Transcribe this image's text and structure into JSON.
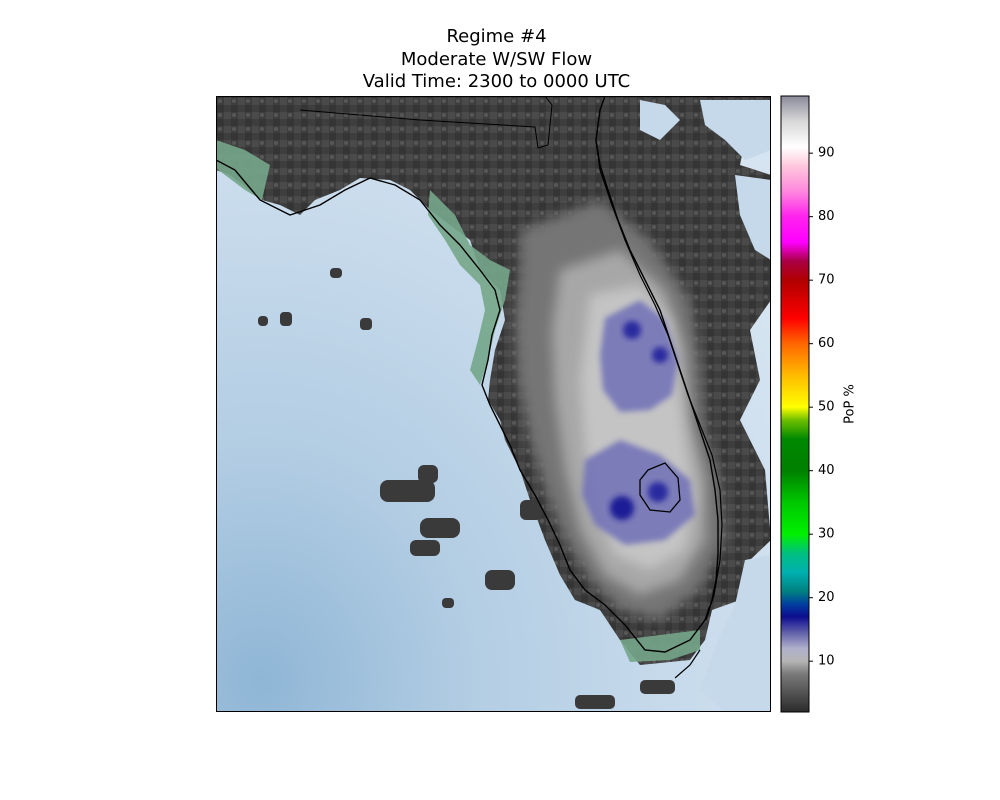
{
  "chart_data": {
    "type": "heatmap",
    "title_lines": [
      "Regime #4",
      "Moderate W/SW Flow",
      "Valid Time: 2300 to 0000 UTC"
    ],
    "colorbar": {
      "label": "PoP %",
      "range": [
        2,
        99
      ],
      "ticks": [
        10,
        20,
        30,
        40,
        50,
        60,
        70,
        80,
        90
      ],
      "color_stops": [
        {
          "value": 2,
          "color": "#2b2b2b"
        },
        {
          "value": 8,
          "color": "#7a7a7a"
        },
        {
          "value": 10,
          "color": "#b5b5b5"
        },
        {
          "value": 12,
          "color": "#b0b0cc"
        },
        {
          "value": 14,
          "color": "#7070b0"
        },
        {
          "value": 17,
          "color": "#0d0d90"
        },
        {
          "value": 19,
          "color": "#0040a0"
        },
        {
          "value": 21,
          "color": "#008080"
        },
        {
          "value": 24,
          "color": "#00b0b0"
        },
        {
          "value": 27,
          "color": "#00c080"
        },
        {
          "value": 30,
          "color": "#00f000"
        },
        {
          "value": 35,
          "color": "#00c800"
        },
        {
          "value": 40,
          "color": "#008000"
        },
        {
          "value": 45,
          "color": "#008800"
        },
        {
          "value": 48,
          "color": "#70c000"
        },
        {
          "value": 50,
          "color": "#ffff00"
        },
        {
          "value": 55,
          "color": "#ffbb00"
        },
        {
          "value": 60,
          "color": "#ff6600"
        },
        {
          "value": 64,
          "color": "#ff0000"
        },
        {
          "value": 70,
          "color": "#b00000"
        },
        {
          "value": 73,
          "color": "#aa0044"
        },
        {
          "value": 76,
          "color": "#ff00ff"
        },
        {
          "value": 80,
          "color": "#ff22ee"
        },
        {
          "value": 84,
          "color": "#ff88dd"
        },
        {
          "value": 88,
          "color": "#ffc8dc"
        },
        {
          "value": 91,
          "color": "#ffffff"
        },
        {
          "value": 95,
          "color": "#d8d8d8"
        },
        {
          "value": 99,
          "color": "#8a8a9a"
        }
      ]
    },
    "map": {
      "region": "Florida peninsula",
      "water_color": "#c5d9ea",
      "coastline_color": "#000000",
      "max_pop_region": "central and south-central peninsula interior",
      "max_pop_range": [
        14,
        18
      ]
    },
    "grid": false,
    "legend_position": "right"
  }
}
